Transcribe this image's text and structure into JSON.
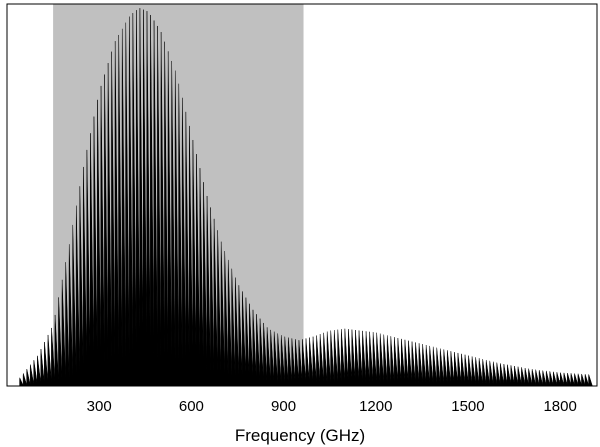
{
  "chart_data": {
    "type": "line",
    "title": "",
    "xlabel": "Frequency (GHz)",
    "ylabel": "",
    "xlim": [
      0,
      1920
    ],
    "ylim": [
      0,
      1.0
    ],
    "xticks": [
      300,
      600,
      900,
      1200,
      1500,
      1800
    ],
    "xtick_labels": [
      "300",
      "600",
      "900",
      "1200",
      "1500",
      "1800"
    ],
    "minor_xticks": [
      150,
      450,
      750,
      1050,
      1350,
      1650
    ],
    "y_ticks_labeled": false,
    "grid": false,
    "legend": "none",
    "shaded_region": {
      "x_start": 150,
      "x_end": 965,
      "color": "#c0c0c0"
    },
    "line_spacing_ghz": 11.5,
    "series": [
      {
        "style": "comb",
        "color": "#000000",
        "envelope_x": [
          30,
          60,
          100,
          150,
          200,
          250,
          300,
          350,
          400,
          430,
          460,
          500,
          550,
          600,
          650,
          700,
          750,
          800,
          850,
          900,
          950,
          1000,
          1050,
          1100,
          1150,
          1200,
          1300,
          1400,
          1500,
          1600,
          1700,
          1800,
          1900
        ],
        "envelope_y": [
          0.01,
          0.04,
          0.08,
          0.16,
          0.36,
          0.58,
          0.77,
          0.9,
          0.97,
          0.99,
          0.98,
          0.93,
          0.82,
          0.66,
          0.5,
          0.37,
          0.27,
          0.2,
          0.15,
          0.13,
          0.12,
          0.13,
          0.145,
          0.15,
          0.145,
          0.14,
          0.12,
          0.1,
          0.08,
          0.06,
          0.045,
          0.035,
          0.03
        ]
      }
    ]
  }
}
